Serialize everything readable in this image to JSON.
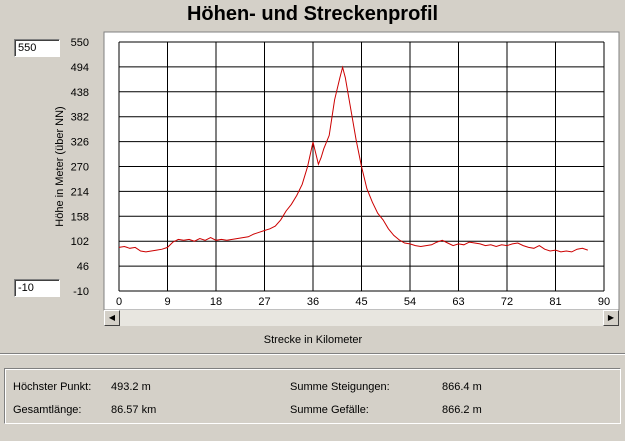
{
  "window": {
    "title": "Höhen- und Streckenprofil"
  },
  "range_inputs": {
    "ymax": "550",
    "ymin": "-10"
  },
  "stats": {
    "max_point_label": "Höchster Punkt:",
    "max_point_value": "493.2 m",
    "total_length_label": "Gesamtlänge:",
    "total_length_value": "86.57 km",
    "sum_ascent_label": "Summe Steigungen:",
    "sum_ascent_value": "866.4 m",
    "sum_descent_label": "Summe Gefälle:",
    "sum_descent_value": "866.2 m"
  },
  "scrollbar": {
    "left_arrow": "◀",
    "right_arrow": "▶"
  },
  "colors": {
    "line": "#cc0000",
    "grid": "#000000",
    "background": "#ffffff"
  },
  "chart_data": {
    "type": "line",
    "xlabel": "Strecke in Kilometer",
    "ylabel": "Höhe in Meter (über NN)",
    "xlim": [
      0,
      90
    ],
    "ylim": [
      -10,
      550
    ],
    "x_ticks": [
      "0",
      "9",
      "18",
      "27",
      "36",
      "45",
      "54",
      "63",
      "72",
      "81",
      "90"
    ],
    "y_ticks": [
      "550",
      "494",
      "438",
      "382",
      "326",
      "270",
      "214",
      "158",
      "102",
      "46",
      "-10"
    ],
    "grid": true,
    "series": [
      {
        "x": [
          0,
          1,
          2,
          3,
          4,
          5,
          6,
          7,
          8,
          9,
          10,
          11,
          12,
          13,
          14,
          15,
          16,
          17,
          18,
          19,
          20,
          21,
          22,
          23,
          24,
          25,
          26,
          27,
          28,
          29,
          30,
          31,
          32,
          33,
          34,
          35,
          36,
          37,
          37.5,
          38,
          39,
          40,
          41,
          41.5,
          42,
          43,
          44,
          45,
          46,
          47,
          48,
          49,
          50,
          51,
          52,
          53,
          54,
          55,
          56,
          57,
          58,
          59,
          60,
          61,
          62,
          63,
          64,
          65,
          66,
          67,
          68,
          69,
          70,
          71,
          72,
          73,
          74,
          75,
          76,
          77,
          78,
          79,
          80,
          81,
          82,
          83,
          84,
          85,
          86,
          87
        ],
        "y": [
          88,
          90,
          86,
          88,
          80,
          78,
          80,
          82,
          84,
          88,
          100,
          106,
          104,
          106,
          102,
          108,
          104,
          110,
          104,
          106,
          104,
          106,
          108,
          110,
          112,
          118,
          122,
          126,
          130,
          136,
          150,
          170,
          185,
          205,
          230,
          270,
          325,
          275,
          290,
          310,
          340,
          420,
          470,
          493,
          470,
          400,
          330,
          270,
          220,
          190,
          165,
          150,
          130,
          115,
          105,
          98,
          96,
          92,
          90,
          92,
          94,
          100,
          104,
          98,
          92,
          96,
          94,
          100,
          98,
          96,
          92,
          94,
          90,
          94,
          92,
          96,
          98,
          92,
          88,
          86,
          92,
          84,
          80,
          82,
          78,
          80,
          78,
          84,
          86,
          82
        ]
      }
    ]
  }
}
